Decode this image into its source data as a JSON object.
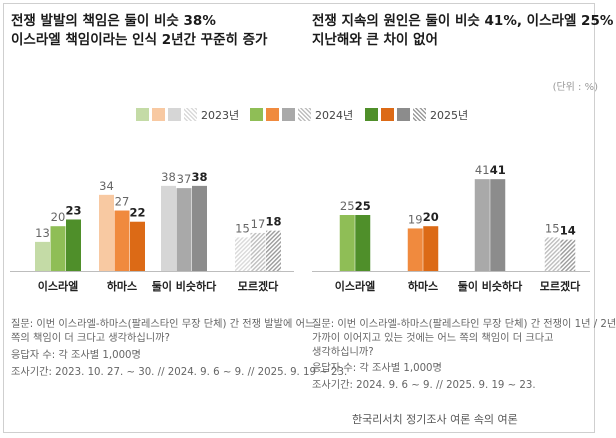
{
  "headlines": {
    "left": [
      "전쟁 발발의 책임은 둘이 비슷 38%",
      "이스라엘 책임이라는 인식 2년간 꾸준히 증가"
    ],
    "right": [
      "전쟁 지속의 원인은 둘이 비슷 41%, 이스라엘 25%",
      "지난해와 큰 차이 없어"
    ]
  },
  "unit_label": "(단위 : %)",
  "legend": [
    "2023년",
    "2024년",
    "2025년"
  ],
  "colors": {
    "israel": [
      "#c4dba6",
      "#8fbe56",
      "#4f8f2a"
    ],
    "hamas": [
      "#f8c9a2",
      "#f08a3e",
      "#dc6a16"
    ],
    "similar": [
      "#d6d6d6",
      "#a9a9a9",
      "#8c8c8c"
    ],
    "unknown": [
      "hatch-light",
      "hatch-mid",
      "hatch-dark"
    ]
  },
  "chart_data": [
    {
      "type": "bar",
      "title": "전쟁 발발의 책임은 둘이 비슷 38%",
      "categories": [
        "이스라엘",
        "하마스",
        "둘이 비슷하다",
        "모르겠다"
      ],
      "series": [
        {
          "name": "2023년",
          "values": [
            13,
            34,
            38,
            15
          ]
        },
        {
          "name": "2024년",
          "values": [
            20,
            27,
            37,
            17
          ]
        },
        {
          "name": "2025년",
          "values": [
            23,
            22,
            38,
            18
          ]
        }
      ],
      "ylim": [
        0,
        45
      ]
    },
    {
      "type": "bar",
      "title": "전쟁 지속의 원인은 둘이 비슷 41%, 이스라엘 25%",
      "categories": [
        "이스라엘",
        "하마스",
        "둘이 비슷하다",
        "모르겠다"
      ],
      "series": [
        {
          "name": "2024년",
          "values": [
            25,
            19,
            41,
            15
          ]
        },
        {
          "name": "2025년",
          "values": [
            25,
            20,
            41,
            14
          ]
        }
      ],
      "ylim": [
        0,
        45
      ]
    }
  ],
  "notes": {
    "left": [
      "질문:  이번 이스라엘-하마스(팔레스타인 무장 단체) 간 전쟁 발발에 어느",
      "          쪽의 책임이 더 크다고 생각하십니까?",
      "응답자 수: 각 조사별 1,000명",
      "조사기간: 2023. 10. 27. ~ 30. // 2024. 9. 6 ~ 9. // 2025. 9. 19 ~ 23."
    ],
    "right": [
      "질문:  이번 이스라엘-하마스(팔레스타인 무장 단체) 간 전쟁이 1년 / 2년",
      "          가까이 이어지고 있는 것에는 어느 쪽의 책임이 더 크다고",
      "          생각하십니까?",
      "응답자 수: 각 조사별 1,000명",
      "조사기간: 2024. 9. 6 ~ 9. // 2025. 9. 19 ~ 23."
    ]
  },
  "source": "한국리서치 정기조사 여론 속의 여론"
}
